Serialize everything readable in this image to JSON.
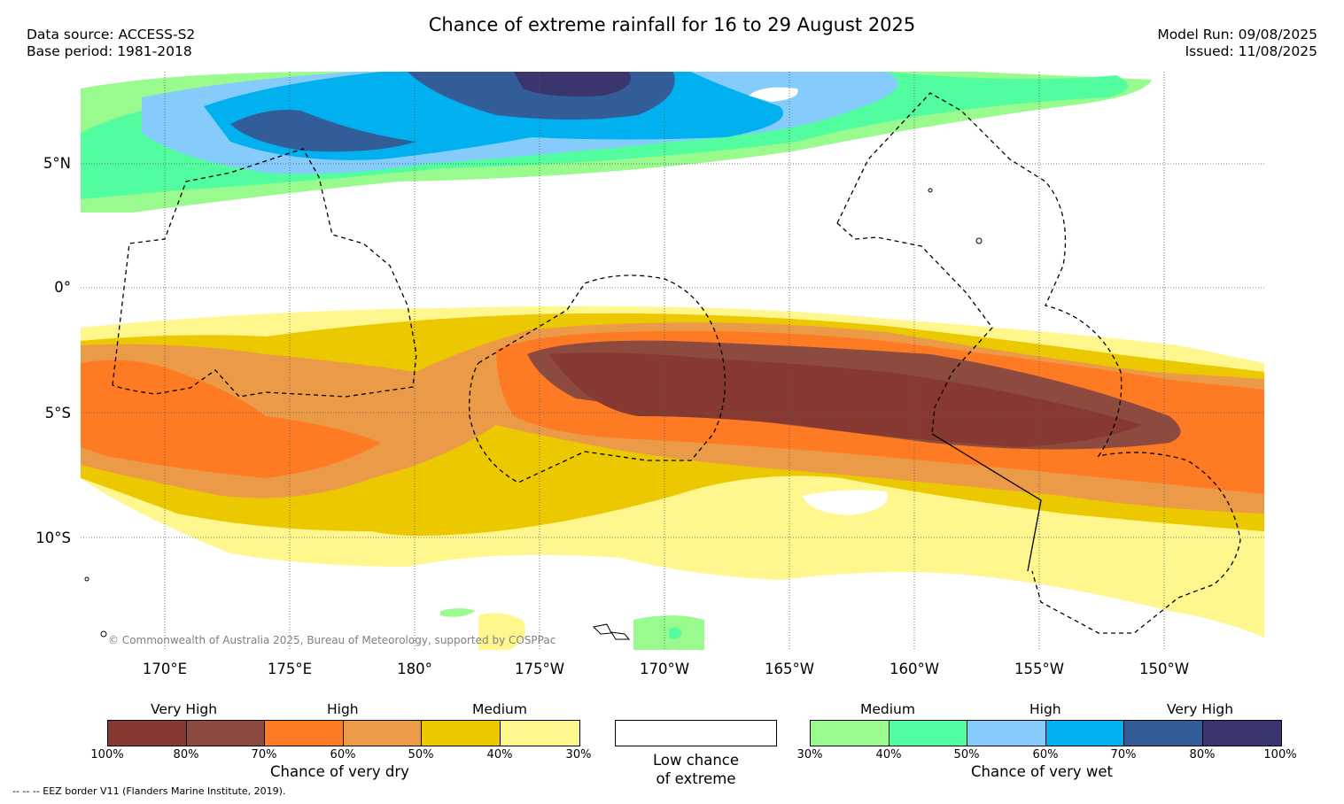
{
  "title": "Chance of extreme rainfall for 16 to 29 August 2025",
  "data_source": "Data source: ACCESS-S2",
  "base_period": "Base period: 1981-2018",
  "model_run": "Model Run: 09/08/2025",
  "issued": "Issued: 11/08/2025",
  "lat_labels": [
    "5°N",
    "0°",
    "5°S",
    "10°S"
  ],
  "lon_labels": [
    "170°E",
    "175°E",
    "180°",
    "175°W",
    "170°W",
    "165°W",
    "160°W",
    "155°W",
    "150°W"
  ],
  "copyright": "© Commonwealth of Australia 2025, Bureau of Meteorology, supported by COSPPac",
  "dry_legend": {
    "categories": [
      "Very High",
      "High",
      "Medium"
    ],
    "ticks": [
      "100%",
      "80%",
      "70%",
      "60%",
      "50%",
      "40%",
      "30%"
    ],
    "colors": [
      "#873831",
      "#8d4b3f",
      "#fe7b24",
      "#eb9a48",
      "#ecc800",
      "#fff68e"
    ],
    "label": "Chance of very dry"
  },
  "low_legend": {
    "label_line1": "Low chance",
    "label_line2": "of extreme"
  },
  "wet_legend": {
    "categories": [
      "Medium",
      "High",
      "Very High"
    ],
    "ticks": [
      "30%",
      "40%",
      "50%",
      "60%",
      "70%",
      "80%",
      "100%"
    ],
    "colors": [
      "#99fa8d",
      "#51fd9f",
      "#85ccfd",
      "#00b0ef",
      "#335d99",
      "#3b356f"
    ],
    "label": "Chance of very wet"
  },
  "footnote": "-- -- -- EEZ border V11 (Flanders Marine Institute, 2019)."
}
